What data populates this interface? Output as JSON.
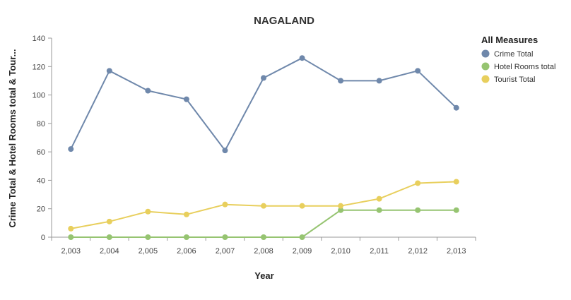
{
  "chart_data": {
    "type": "line",
    "title": "NAGALAND",
    "xlabel": "Year",
    "ylabel": "Crime Total & Hotel Rooms total & Tour...",
    "categories": [
      "2,003",
      "2,004",
      "2,005",
      "2,006",
      "2,007",
      "2,008",
      "2,009",
      "2,010",
      "2,011",
      "2,012",
      "2,013"
    ],
    "ylim": [
      0,
      140
    ],
    "yticks": [
      0,
      20,
      40,
      60,
      80,
      100,
      120,
      140
    ],
    "grid": false,
    "legend": {
      "title": "All Measures",
      "placement": "top-right"
    },
    "series": [
      {
        "name": "Crime Total",
        "color": "#6f88ab",
        "values": [
          62,
          117,
          103,
          97,
          61,
          112,
          126,
          110,
          110,
          117,
          91
        ]
      },
      {
        "name": "Hotel Rooms total",
        "color": "#96c471",
        "values": [
          0,
          0,
          0,
          0,
          0,
          0,
          0,
          19,
          19,
          19,
          19
        ]
      },
      {
        "name": "Tourist Total",
        "color": "#e8cf5d",
        "values": [
          6,
          11,
          18,
          16,
          23,
          22,
          22,
          22,
          27,
          38,
          39
        ]
      }
    ]
  }
}
